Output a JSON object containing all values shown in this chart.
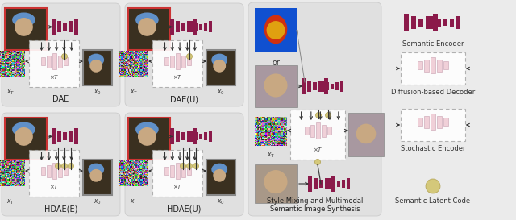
{
  "bg_color": "#ebebeb",
  "panel_color": "#e0e0e0",
  "dark_maroon": "#8B1A4A",
  "light_pink": "#F0D0D8",
  "light_yellow": "#DDD090",
  "labels": {
    "dae": "DAE",
    "dae_u": "DAE(U)",
    "hdae_e": "HDAE(E)",
    "hdae_u": "HDAE(U)",
    "style_mix": "Style Mixing and Multimodal\nSemantic Image Synthesis",
    "sem_enc": "Semantic Encoder",
    "diff_dec": "Diffusion-based Decoder",
    "stoch_enc": "Stochastic Encoder",
    "sem_lat": "Semantic Latent Code",
    "or": "or",
    "xT": "$x_T$",
    "x0": "$x_0$",
    "times_T": "$\\times T$"
  },
  "font_size_label": 7,
  "font_size_small": 6,
  "font_size_tiny": 5.5
}
